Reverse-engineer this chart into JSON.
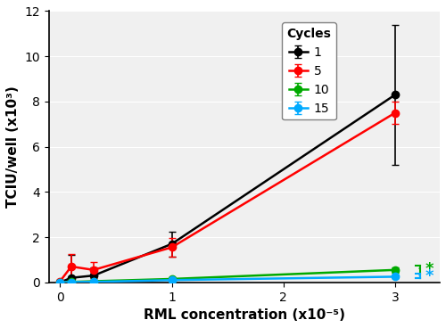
{
  "x_values": [
    0.0,
    0.1,
    0.3,
    1.0,
    3.0
  ],
  "series": {
    "1": {
      "y": [
        0.0,
        0.2,
        0.3,
        1.7,
        8.3
      ],
      "yerr": [
        0.0,
        1.0,
        0.35,
        0.55,
        3.1
      ],
      "color": "#000000",
      "label": "1"
    },
    "5": {
      "y": [
        0.05,
        0.7,
        0.55,
        1.55,
        7.5
      ],
      "yerr": [
        0.05,
        0.55,
        0.35,
        0.4,
        0.5
      ],
      "color": "#ff0000",
      "label": "5"
    },
    "10": {
      "y": [
        0.0,
        0.02,
        0.05,
        0.15,
        0.55
      ],
      "yerr": [
        0.0,
        0.02,
        0.03,
        0.08,
        0.12
      ],
      "color": "#00aa00",
      "label": "10"
    },
    "15": {
      "y": [
        0.0,
        0.01,
        0.02,
        0.1,
        0.25
      ],
      "yerr": [
        0.0,
        0.01,
        0.02,
        0.05,
        0.08
      ],
      "color": "#00aaff",
      "label": "15"
    }
  },
  "xlabel": "RML concentration (x10⁻⁵)",
  "ylabel": "TCIU/well (x10³)",
  "xlim": [
    -0.1,
    3.4
  ],
  "ylim": [
    0,
    12
  ],
  "yticks": [
    0,
    2,
    4,
    6,
    8,
    10,
    12
  ],
  "xticks": [
    0,
    1,
    2,
    3
  ],
  "legend_title": "Cycles",
  "background_color": "#f0f0f0",
  "fig_background": "#ffffff",
  "series_order": [
    "1",
    "5",
    "10",
    "15"
  ]
}
